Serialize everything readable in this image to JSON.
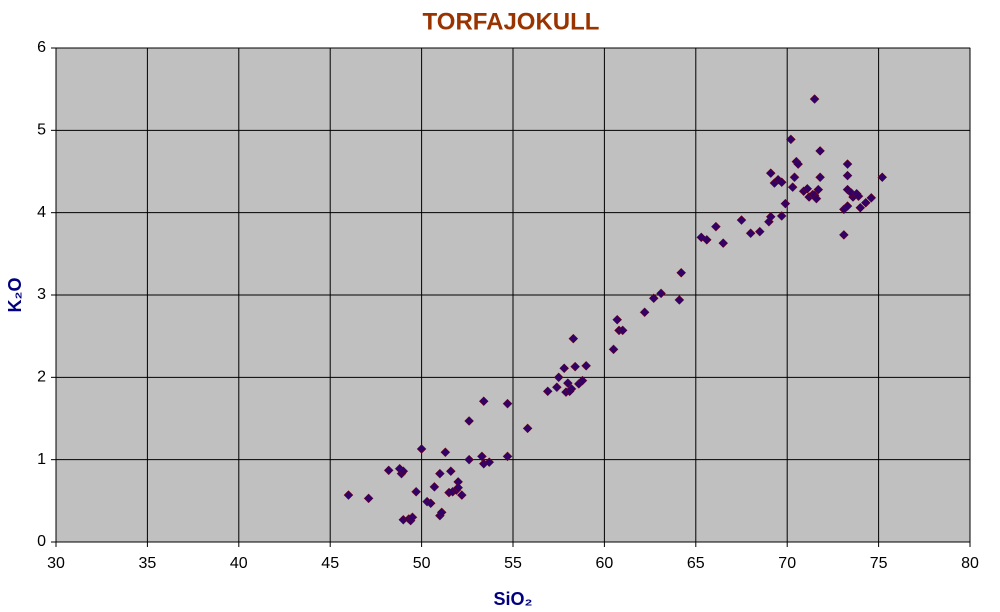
{
  "chart_data": {
    "type": "scatter",
    "title": "TORFAJOKULL",
    "x_label": "SiO₂",
    "y_label": "K₂O",
    "title_color": "#993300",
    "label_color": "#000080",
    "plot_background": "#c0c0c0",
    "grid": true,
    "color": "#330066",
    "xlim": [
      30,
      80
    ],
    "xticks": [
      30,
      35,
      40,
      45,
      50,
      55,
      60,
      65,
      70,
      75,
      80
    ],
    "ylim": [
      0,
      6
    ],
    "yticks": [
      0,
      1,
      2,
      3,
      4,
      5,
      6
    ],
    "x": [
      46.0,
      47.1,
      48.2,
      48.8,
      48.9,
      49.0,
      49.0,
      49.3,
      49.4,
      49.5,
      49.7,
      50.0,
      50.3,
      50.5,
      50.7,
      51.0,
      51.0,
      51.1,
      51.3,
      51.5,
      51.7,
      51.6,
      51.9,
      52.0,
      52.2,
      52.0,
      52.6,
      52.6,
      53.3,
      53.4,
      53.4,
      53.7,
      54.7,
      54.7,
      55.8,
      56.9,
      57.4,
      57.5,
      57.8,
      57.9,
      58.2,
      58.0,
      58.1,
      58.3,
      58.4,
      58.6,
      58.8,
      59.0,
      60.5,
      60.7,
      60.8,
      61.0,
      62.2,
      62.7,
      63.1,
      64.1,
      64.2,
      65.3,
      65.6,
      66.1,
      66.5,
      67.5,
      68.0,
      68.5,
      69.0,
      69.1,
      69.1,
      69.3,
      69.5,
      69.7,
      69.7,
      69.9,
      70.2,
      70.3,
      70.4,
      70.5,
      70.6,
      70.9,
      71.1,
      71.2,
      71.4,
      71.5,
      71.5,
      71.7,
      71.6,
      71.8,
      71.8,
      73.1,
      73.1,
      73.3,
      73.3,
      73.3,
      73.3,
      73.6,
      73.5,
      73.8,
      73.9,
      74.0,
      74.3,
      74.6,
      75.2
    ],
    "values": [
      0.57,
      0.53,
      0.87,
      0.89,
      0.83,
      0.86,
      0.27,
      0.28,
      0.26,
      0.3,
      0.61,
      1.13,
      0.49,
      0.47,
      0.67,
      0.83,
      0.32,
      0.36,
      1.09,
      0.6,
      0.61,
      0.86,
      0.63,
      0.73,
      0.57,
      0.66,
      1.47,
      1.0,
      1.04,
      0.95,
      1.71,
      0.97,
      1.68,
      1.04,
      1.38,
      1.83,
      1.88,
      2.0,
      2.11,
      1.82,
      1.86,
      1.93,
      1.83,
      2.47,
      2.13,
      1.92,
      1.96,
      2.14,
      2.34,
      2.7,
      2.57,
      2.57,
      2.79,
      2.96,
      3.02,
      2.94,
      3.27,
      3.7,
      3.67,
      3.83,
      3.63,
      3.91,
      3.75,
      3.77,
      3.89,
      3.95,
      4.48,
      4.36,
      4.4,
      4.37,
      3.96,
      4.11,
      4.89,
      4.31,
      4.43,
      4.62,
      4.59,
      4.26,
      4.29,
      4.19,
      4.22,
      5.38,
      4.21,
      4.28,
      4.17,
      4.75,
      4.43,
      3.73,
      4.04,
      4.08,
      4.59,
      4.45,
      4.28,
      4.19,
      4.24,
      4.23,
      4.2,
      4.06,
      4.12,
      4.18,
      4.43
    ]
  }
}
